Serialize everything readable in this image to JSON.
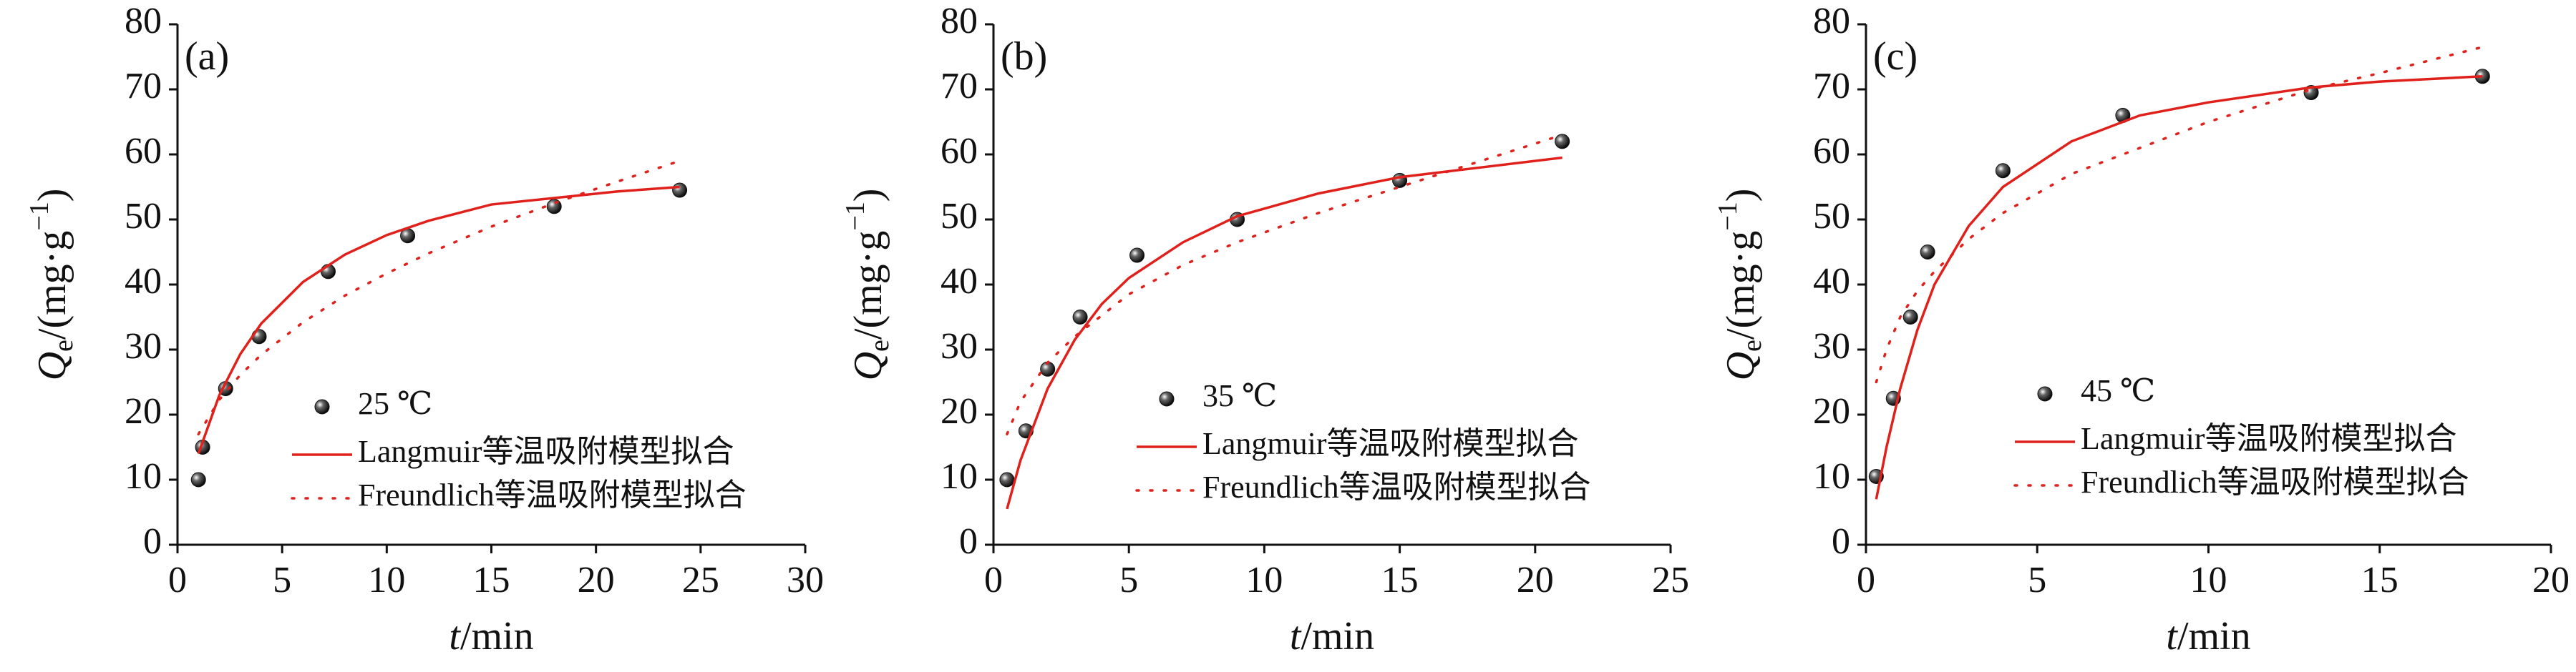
{
  "chart_data": [
    {
      "type": "scatter",
      "panel_label": "(a)",
      "xlabel": [
        "t",
        "/min"
      ],
      "ylabel": [
        "Q",
        "e",
        "/(mg·g",
        "−1",
        ")"
      ],
      "xlim": [
        0,
        30
      ],
      "xticks": [
        0,
        5,
        10,
        15,
        20,
        25,
        30
      ],
      "ylim": [
        0,
        80
      ],
      "yticks": [
        0,
        10,
        20,
        30,
        40,
        50,
        60,
        70,
        80
      ],
      "series": [
        {
          "name": "25 ℃",
          "color": "#111111",
          "style": "marker",
          "x": [
            1,
            1.2,
            2.3,
            3.9,
            7.2,
            11,
            18,
            24
          ],
          "values": [
            10,
            15,
            24,
            32,
            42,
            47.5,
            52,
            54.5
          ]
        },
        {
          "name": "Langmuir等温吸附模型拟合",
          "color": "#e0201b",
          "style": "solid",
          "x": [
            1,
            2,
            3,
            4,
            6,
            8,
            10,
            12,
            15,
            18,
            21,
            24
          ],
          "values": [
            14,
            23,
            29.3,
            34,
            40.4,
            44.6,
            47.6,
            49.8,
            52.3,
            53.3,
            54.3,
            55
          ]
        },
        {
          "name": "Freundlich等温吸附模型拟合",
          "color": "#e0201b",
          "style": "dotted",
          "x": [
            1,
            2,
            3,
            4,
            6,
            8,
            10,
            12,
            15,
            18,
            21,
            24
          ],
          "values": [
            17,
            22.3,
            26.1,
            29.2,
            34.2,
            38.3,
            41.7,
            44.8,
            48.9,
            52.5,
            55.8,
            59
          ]
        }
      ]
    },
    {
      "type": "scatter",
      "panel_label": "(b)",
      "xlabel": [
        "t",
        "/min"
      ],
      "ylabel": [
        "Q",
        "e",
        "/(mg·g",
        "−1",
        ")"
      ],
      "xlim": [
        0,
        25
      ],
      "xticks": [
        0,
        5,
        10,
        15,
        20,
        25
      ],
      "ylim": [
        0,
        80
      ],
      "yticks": [
        0,
        10,
        20,
        30,
        40,
        50,
        60,
        70,
        80
      ],
      "series": [
        {
          "name": "35 ℃",
          "color": "#111111",
          "style": "marker",
          "x": [
            0.5,
            1.2,
            2,
            3.2,
            5.3,
            9,
            15,
            21
          ],
          "values": [
            10,
            17.5,
            27,
            35,
            44.5,
            50,
            56,
            62
          ]
        },
        {
          "name": "Langmuir等温吸附模型拟合",
          "color": "#e0201b",
          "style": "solid",
          "x": [
            0.5,
            1,
            2,
            3,
            4,
            5,
            7,
            9,
            12,
            15,
            18,
            21
          ],
          "values": [
            5.5,
            13,
            24,
            31.5,
            37,
            41,
            46.5,
            50.5,
            54,
            56.5,
            58,
            59.5
          ]
        },
        {
          "name": "Freundlich等温吸附模型拟合",
          "color": "#e0201b",
          "style": "dotted",
          "x": [
            0.5,
            1,
            2,
            3,
            5,
            7,
            9,
            12,
            15,
            18,
            21
          ],
          "values": [
            17,
            22,
            28,
            32,
            38.5,
            43,
            46.5,
            51,
            55,
            59,
            63
          ]
        }
      ]
    },
    {
      "type": "scatter",
      "panel_label": "(c)",
      "xlabel": [
        "t",
        "/min"
      ],
      "ylabel": [
        "Q",
        "e",
        "/(mg·g",
        "−1",
        ")"
      ],
      "xlim": [
        0,
        20
      ],
      "xticks": [
        0,
        5,
        10,
        15,
        20
      ],
      "ylim": [
        0,
        80
      ],
      "yticks": [
        0,
        10,
        20,
        30,
        40,
        50,
        60,
        70,
        80
      ],
      "series": [
        {
          "name": "45 ℃",
          "color": "#111111",
          "style": "marker",
          "x": [
            0.3,
            0.8,
            1.3,
            1.8,
            4,
            7.5,
            13,
            18
          ],
          "values": [
            10.5,
            22.5,
            35,
            45,
            57.5,
            66,
            69.5,
            72
          ]
        },
        {
          "name": "Langmuir等温吸附模型拟合",
          "color": "#e0201b",
          "style": "solid",
          "x": [
            0.3,
            0.6,
            1,
            1.5,
            2,
            3,
            4,
            6,
            8,
            10,
            13,
            15,
            18
          ],
          "values": [
            7,
            15,
            24,
            33,
            40,
            49,
            55,
            62,
            66,
            68,
            70.3,
            71.2,
            72
          ]
        },
        {
          "name": "Freundlich等温吸附模型拟合",
          "color": "#e0201b",
          "style": "dotted",
          "x": [
            0.3,
            0.6,
            1,
            1.5,
            2,
            3,
            4,
            6,
            8,
            10,
            13,
            15,
            18
          ],
          "values": [
            25,
            30,
            35,
            39,
            42,
            47,
            51,
            57,
            61,
            65,
            70,
            72.5,
            76.5
          ]
        }
      ]
    }
  ]
}
